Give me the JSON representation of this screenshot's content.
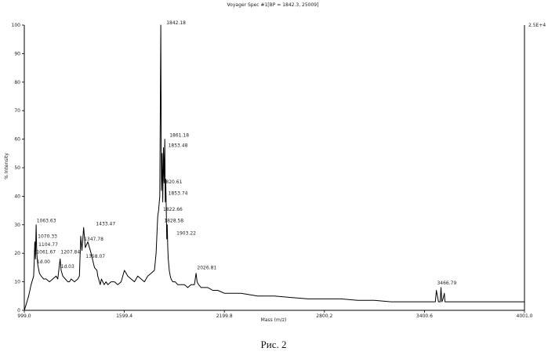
{
  "chart_data": {
    "type": "line",
    "title": "Voyager Spec #1[BP = 1842.3, 25009]",
    "xlabel": "Mass (m/z)",
    "ylabel": "% Intensity",
    "xlim": [
      999.0,
      4001.0
    ],
    "ylim": [
      0,
      100
    ],
    "x_ticks": [
      "999.0",
      "1599.4",
      "2199.8",
      "2800.2",
      "3400.6",
      "4001.0"
    ],
    "y_ticks": [
      "0",
      "10",
      "20",
      "30",
      "40",
      "50",
      "60",
      "70",
      "80",
      "90",
      "100"
    ],
    "right_axis_label": "2.5E+4",
    "grid": false,
    "series": [
      {
        "x": [
          999.0,
          1010,
          1025,
          1040,
          1055,
          1058,
          1062,
          1066,
          1070,
          1074,
          1080,
          1090,
          1100,
          1115,
          1130,
          1150,
          1170,
          1190,
          1200,
          1208,
          1214,
          1220,
          1230,
          1245,
          1260,
          1270,
          1280,
          1300,
          1320,
          1330,
          1338,
          1345,
          1355,
          1365,
          1380,
          1400,
          1420,
          1435,
          1440,
          1445,
          1450,
          1455,
          1462,
          1470,
          1478,
          1490,
          1500,
          1520,
          1540,
          1560,
          1580,
          1600,
          1620,
          1640,
          1660,
          1680,
          1700,
          1720,
          1740,
          1760,
          1780,
          1790,
          1800,
          1805,
          1812,
          1818,
          1822,
          1826,
          1830,
          1834,
          1838,
          1842,
          1845,
          1848,
          1851,
          1854,
          1857,
          1860,
          1863,
          1866,
          1869,
          1872,
          1875,
          1880,
          1890,
          1905,
          1920,
          1940,
          1960,
          1980,
          2000,
          2020,
          2030,
          2036,
          2045,
          2060,
          2080,
          2100,
          2130,
          2160,
          2200,
          2250,
          2300,
          2400,
          2500,
          2600,
          2700,
          2800,
          2900,
          3000,
          3100,
          3200,
          3300,
          3400,
          3450,
          3460,
          3466,
          3472,
          3485,
          3495,
          3500,
          3505,
          3512,
          3520,
          3524,
          3528,
          3540,
          3600,
          3700,
          3800,
          3900,
          4001
        ],
        "y": [
          0,
          2,
          5,
          9,
          12,
          16,
          24,
          18,
          30,
          20,
          16,
          13,
          12,
          11,
          11,
          10,
          11,
          12,
          11,
          15,
          18,
          14,
          12,
          11,
          10,
          10,
          11,
          10,
          11,
          12,
          26,
          21,
          29,
          22,
          24,
          20,
          15,
          14,
          12,
          11,
          10,
          9,
          11,
          10,
          9,
          10,
          9,
          10,
          10,
          9,
          10,
          14,
          12,
          11,
          10,
          12,
          11,
          10,
          12,
          13,
          14,
          20,
          33,
          35,
          40,
          100,
          42,
          55,
          38,
          57,
          45,
          60,
          38,
          46,
          35,
          25,
          30,
          22,
          18,
          16,
          14,
          13,
          12,
          11,
          10,
          10,
          9,
          9,
          9,
          8,
          9,
          9,
          13,
          10,
          9,
          8,
          8,
          8,
          7,
          7,
          6,
          6,
          6,
          5,
          5,
          4.5,
          4,
          4,
          4,
          3.5,
          3.5,
          3,
          3,
          3,
          3,
          3,
          3,
          7,
          3,
          3,
          8,
          3,
          4,
          6,
          3,
          3,
          3,
          3,
          3,
          3,
          3,
          3
        ]
      }
    ],
    "peak_labels": [
      {
        "x": 1063.63,
        "y": 30.6,
        "text": "1063.63"
      },
      {
        "x": 1070.33,
        "y": 25.2,
        "text": "1070.33"
      },
      {
        "x": 1074.77,
        "y": 22.2,
        "text": "1104.77"
      },
      {
        "x": 1061.67,
        "y": 19.6,
        "text": "1061.67"
      },
      {
        "x": 1064.0,
        "y": 16.2,
        "text": "1d.00"
      },
      {
        "x": 1207.84,
        "y": 19.6,
        "text": "1207.84"
      },
      {
        "x": 1209.0,
        "y": 14.6,
        "text": "1d.03"
      },
      {
        "x": 1419.47,
        "y": 29.6,
        "text": "1433.47"
      },
      {
        "x": 1347.78,
        "y": 24.2,
        "text": "1347.78"
      },
      {
        "x": 1358.07,
        "y": 18.2,
        "text": "1358.07"
      },
      {
        "x": 1842.18,
        "y": 100,
        "text": "1842.18"
      },
      {
        "x": 1861.18,
        "y": 60.6,
        "text": "1861.18"
      },
      {
        "x": 1853.48,
        "y": 57.0,
        "text": "1853.48"
      },
      {
        "x": 1820.61,
        "y": 44.2,
        "text": "1820.61"
      },
      {
        "x": 1853.74,
        "y": 40.2,
        "text": "1853.74"
      },
      {
        "x": 1822.66,
        "y": 34.6,
        "text": "1822.66"
      },
      {
        "x": 1828.58,
        "y": 30.6,
        "text": "1828.58"
      },
      {
        "x": 1903.22,
        "y": 26.2,
        "text": "1903.22"
      },
      {
        "x": 2026.81,
        "y": 14.2,
        "text": "2026.81"
      },
      {
        "x": 3466.79,
        "y": 8.8,
        "text": "3466.79"
      }
    ]
  },
  "caption": "Рис. 2"
}
